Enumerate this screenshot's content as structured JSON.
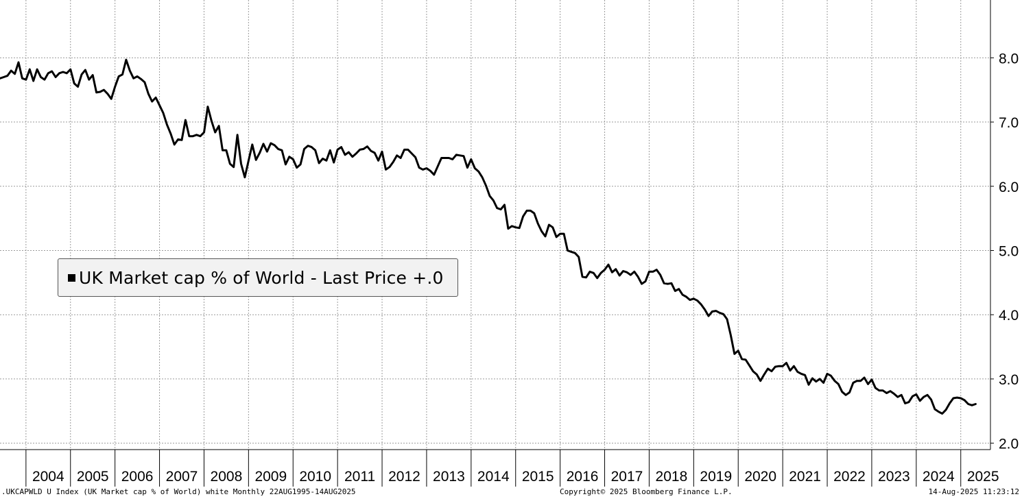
{
  "chart_data": {
    "type": "line",
    "title": "",
    "xlabel": "",
    "ylabel": "",
    "ylim": [
      1.9,
      8.9
    ],
    "xlim": [
      "2003-06",
      "2025-09"
    ],
    "grid": true,
    "y_axis_side": "right",
    "y_ticks": [
      "2.0",
      "3.0",
      "4.0",
      "5.0",
      "6.0",
      "7.0",
      "8.0"
    ],
    "x_ticks": [
      "2004",
      "2005",
      "2006",
      "2007",
      "2008",
      "2009",
      "2010",
      "2011",
      "2012",
      "2013",
      "2014",
      "2015",
      "2016",
      "2017",
      "2018",
      "2019",
      "2020",
      "2021",
      "2022",
      "2023",
      "2024",
      "2025"
    ],
    "legend": {
      "position": "middle-left",
      "label": "UK Market cap % of World - Last Price  +.0"
    },
    "series": [
      {
        "color": "#000000",
        "points": [
          [
            "2003-06",
            7.68
          ],
          [
            "2003-07",
            7.7
          ],
          [
            "2003-08",
            7.72
          ],
          [
            "2003-09",
            7.8
          ],
          [
            "2003-10",
            7.75
          ],
          [
            "2003-11",
            7.93
          ],
          [
            "2003-12",
            7.68
          ],
          [
            "2004-01",
            7.66
          ],
          [
            "2004-02",
            7.82
          ],
          [
            "2004-03",
            7.64
          ],
          [
            "2004-04",
            7.82
          ],
          [
            "2004-05",
            7.7
          ],
          [
            "2004-06",
            7.66
          ],
          [
            "2004-07",
            7.76
          ],
          [
            "2004-08",
            7.79
          ],
          [
            "2004-09",
            7.7
          ],
          [
            "2004-10",
            7.76
          ],
          [
            "2004-11",
            7.78
          ],
          [
            "2004-12",
            7.76
          ],
          [
            "2005-01",
            7.82
          ],
          [
            "2005-02",
            7.6
          ],
          [
            "2005-03",
            7.55
          ],
          [
            "2005-04",
            7.74
          ],
          [
            "2005-05",
            7.81
          ],
          [
            "2005-06",
            7.66
          ],
          [
            "2005-07",
            7.73
          ],
          [
            "2005-08",
            7.46
          ],
          [
            "2005-09",
            7.47
          ],
          [
            "2005-10",
            7.5
          ],
          [
            "2005-11",
            7.44
          ],
          [
            "2005-12",
            7.36
          ],
          [
            "2006-01",
            7.55
          ],
          [
            "2006-02",
            7.71
          ],
          [
            "2006-03",
            7.74
          ],
          [
            "2006-04",
            7.97
          ],
          [
            "2006-05",
            7.8
          ],
          [
            "2006-06",
            7.68
          ],
          [
            "2006-07",
            7.71
          ],
          [
            "2006-08",
            7.67
          ],
          [
            "2006-09",
            7.62
          ],
          [
            "2006-10",
            7.44
          ],
          [
            "2006-11",
            7.32
          ],
          [
            "2006-12",
            7.38
          ],
          [
            "2007-01",
            7.26
          ],
          [
            "2007-02",
            7.14
          ],
          [
            "2007-03",
            6.96
          ],
          [
            "2007-04",
            6.82
          ],
          [
            "2007-05",
            6.65
          ],
          [
            "2007-06",
            6.73
          ],
          [
            "2007-07",
            6.72
          ],
          [
            "2007-08",
            7.03
          ],
          [
            "2007-09",
            6.78
          ],
          [
            "2007-10",
            6.78
          ],
          [
            "2007-11",
            6.8
          ],
          [
            "2007-12",
            6.78
          ],
          [
            "2008-01",
            6.84
          ],
          [
            "2008-02",
            7.24
          ],
          [
            "2008-03",
            7.02
          ],
          [
            "2008-04",
            6.84
          ],
          [
            "2008-05",
            6.94
          ],
          [
            "2008-06",
            6.56
          ],
          [
            "2008-07",
            6.56
          ],
          [
            "2008-08",
            6.35
          ],
          [
            "2008-09",
            6.3
          ],
          [
            "2008-10",
            6.8
          ],
          [
            "2008-11",
            6.35
          ],
          [
            "2008-12",
            6.14
          ],
          [
            "2009-01",
            6.4
          ],
          [
            "2009-02",
            6.65
          ],
          [
            "2009-03",
            6.41
          ],
          [
            "2009-04",
            6.52
          ],
          [
            "2009-05",
            6.66
          ],
          [
            "2009-06",
            6.54
          ],
          [
            "2009-07",
            6.67
          ],
          [
            "2009-08",
            6.64
          ],
          [
            "2009-09",
            6.58
          ],
          [
            "2009-10",
            6.56
          ],
          [
            "2009-11",
            6.34
          ],
          [
            "2009-12",
            6.46
          ],
          [
            "2010-01",
            6.42
          ],
          [
            "2010-02",
            6.29
          ],
          [
            "2010-03",
            6.34
          ],
          [
            "2010-04",
            6.58
          ],
          [
            "2010-05",
            6.63
          ],
          [
            "2010-06",
            6.61
          ],
          [
            "2010-07",
            6.56
          ],
          [
            "2010-08",
            6.36
          ],
          [
            "2010-09",
            6.43
          ],
          [
            "2010-10",
            6.4
          ],
          [
            "2010-11",
            6.56
          ],
          [
            "2010-12",
            6.37
          ],
          [
            "2011-01",
            6.57
          ],
          [
            "2011-02",
            6.61
          ],
          [
            "2011-03",
            6.49
          ],
          [
            "2011-04",
            6.53
          ],
          [
            "2011-05",
            6.46
          ],
          [
            "2011-06",
            6.51
          ],
          [
            "2011-07",
            6.57
          ],
          [
            "2011-08",
            6.58
          ],
          [
            "2011-09",
            6.62
          ],
          [
            "2011-10",
            6.55
          ],
          [
            "2011-11",
            6.52
          ],
          [
            "2011-12",
            6.4
          ],
          [
            "2012-01",
            6.54
          ],
          [
            "2012-02",
            6.26
          ],
          [
            "2012-03",
            6.3
          ],
          [
            "2012-04",
            6.38
          ],
          [
            "2012-05",
            6.48
          ],
          [
            "2012-06",
            6.44
          ],
          [
            "2012-07",
            6.57
          ],
          [
            "2012-08",
            6.57
          ],
          [
            "2012-09",
            6.51
          ],
          [
            "2012-10",
            6.45
          ],
          [
            "2012-11",
            6.29
          ],
          [
            "2012-12",
            6.26
          ],
          [
            "2013-01",
            6.28
          ],
          [
            "2013-02",
            6.24
          ],
          [
            "2013-03",
            6.18
          ],
          [
            "2013-04",
            6.31
          ],
          [
            "2013-05",
            6.44
          ],
          [
            "2013-06",
            6.44
          ],
          [
            "2013-07",
            6.44
          ],
          [
            "2013-08",
            6.42
          ],
          [
            "2013-09",
            6.49
          ],
          [
            "2013-10",
            6.48
          ],
          [
            "2013-11",
            6.47
          ],
          [
            "2013-12",
            6.29
          ],
          [
            "2014-01",
            6.42
          ],
          [
            "2014-02",
            6.28
          ],
          [
            "2014-03",
            6.23
          ],
          [
            "2014-04",
            6.14
          ],
          [
            "2014-05",
            6.01
          ],
          [
            "2014-06",
            5.85
          ],
          [
            "2014-07",
            5.78
          ],
          [
            "2014-08",
            5.66
          ],
          [
            "2014-09",
            5.64
          ],
          [
            "2014-10",
            5.71
          ],
          [
            "2014-11",
            5.34
          ],
          [
            "2014-12",
            5.38
          ],
          [
            "2015-01",
            5.36
          ],
          [
            "2015-02",
            5.35
          ],
          [
            "2015-03",
            5.53
          ],
          [
            "2015-04",
            5.62
          ],
          [
            "2015-05",
            5.62
          ],
          [
            "2015-06",
            5.58
          ],
          [
            "2015-07",
            5.42
          ],
          [
            "2015-08",
            5.3
          ],
          [
            "2015-09",
            5.22
          ],
          [
            "2015-10",
            5.4
          ],
          [
            "2015-11",
            5.36
          ],
          [
            "2015-12",
            5.21
          ],
          [
            "2016-01",
            5.26
          ],
          [
            "2016-02",
            5.26
          ],
          [
            "2016-03",
            5.0
          ],
          [
            "2016-04",
            4.98
          ],
          [
            "2016-05",
            4.96
          ],
          [
            "2016-06",
            4.9
          ],
          [
            "2016-07",
            4.59
          ],
          [
            "2016-08",
            4.58
          ],
          [
            "2016-09",
            4.67
          ],
          [
            "2016-10",
            4.65
          ],
          [
            "2016-11",
            4.57
          ],
          [
            "2016-12",
            4.65
          ],
          [
            "2017-01",
            4.7
          ],
          [
            "2017-02",
            4.78
          ],
          [
            "2017-03",
            4.66
          ],
          [
            "2017-04",
            4.71
          ],
          [
            "2017-05",
            4.61
          ],
          [
            "2017-06",
            4.68
          ],
          [
            "2017-07",
            4.66
          ],
          [
            "2017-08",
            4.62
          ],
          [
            "2017-09",
            4.67
          ],
          [
            "2017-10",
            4.59
          ],
          [
            "2017-11",
            4.48
          ],
          [
            "2017-12",
            4.52
          ],
          [
            "2018-01",
            4.67
          ],
          [
            "2018-02",
            4.67
          ],
          [
            "2018-03",
            4.7
          ],
          [
            "2018-04",
            4.62
          ],
          [
            "2018-05",
            4.49
          ],
          [
            "2018-06",
            4.48
          ],
          [
            "2018-07",
            4.49
          ],
          [
            "2018-08",
            4.37
          ],
          [
            "2018-09",
            4.4
          ],
          [
            "2018-10",
            4.31
          ],
          [
            "2018-11",
            4.28
          ],
          [
            "2018-12",
            4.23
          ],
          [
            "2019-01",
            4.25
          ],
          [
            "2019-02",
            4.22
          ],
          [
            "2019-03",
            4.16
          ],
          [
            "2019-04",
            4.08
          ],
          [
            "2019-05",
            3.98
          ],
          [
            "2019-06",
            4.05
          ],
          [
            "2019-07",
            4.06
          ],
          [
            "2019-08",
            4.03
          ],
          [
            "2019-09",
            4.01
          ],
          [
            "2019-10",
            3.93
          ],
          [
            "2019-11",
            3.68
          ],
          [
            "2019-12",
            3.39
          ],
          [
            "2020-01",
            3.44
          ],
          [
            "2020-02",
            3.31
          ],
          [
            "2020-03",
            3.3
          ],
          [
            "2020-04",
            3.21
          ],
          [
            "2020-05",
            3.12
          ],
          [
            "2020-06",
            3.07
          ],
          [
            "2020-07",
            2.97
          ],
          [
            "2020-08",
            3.07
          ],
          [
            "2020-09",
            3.16
          ],
          [
            "2020-10",
            3.12
          ],
          [
            "2020-11",
            3.19
          ],
          [
            "2020-12",
            3.2
          ],
          [
            "2021-01",
            3.2
          ],
          [
            "2021-02",
            3.25
          ],
          [
            "2021-03",
            3.13
          ],
          [
            "2021-04",
            3.2
          ],
          [
            "2021-05",
            3.11
          ],
          [
            "2021-06",
            3.08
          ],
          [
            "2021-07",
            3.06
          ],
          [
            "2021-08",
            2.91
          ],
          [
            "2021-09",
            3.01
          ],
          [
            "2021-10",
            2.96
          ],
          [
            "2021-11",
            3.0
          ],
          [
            "2021-12",
            2.94
          ],
          [
            "2022-01",
            3.08
          ],
          [
            "2022-02",
            3.05
          ],
          [
            "2022-03",
            2.97
          ],
          [
            "2022-04",
            2.92
          ],
          [
            "2022-05",
            2.8
          ],
          [
            "2022-06",
            2.75
          ],
          [
            "2022-07",
            2.79
          ],
          [
            "2022-08",
            2.94
          ],
          [
            "2022-09",
            2.97
          ],
          [
            "2022-10",
            2.97
          ],
          [
            "2022-11",
            3.02
          ],
          [
            "2022-12",
            2.92
          ],
          [
            "2023-01",
            2.99
          ],
          [
            "2023-02",
            2.86
          ],
          [
            "2023-03",
            2.82
          ],
          [
            "2023-04",
            2.82
          ],
          [
            "2023-05",
            2.78
          ],
          [
            "2023-06",
            2.81
          ],
          [
            "2023-07",
            2.77
          ],
          [
            "2023-08",
            2.72
          ],
          [
            "2023-09",
            2.75
          ],
          [
            "2023-10",
            2.62
          ],
          [
            "2023-11",
            2.64
          ],
          [
            "2023-12",
            2.73
          ],
          [
            "2024-01",
            2.76
          ],
          [
            "2024-02",
            2.66
          ],
          [
            "2024-03",
            2.72
          ],
          [
            "2024-04",
            2.75
          ],
          [
            "2024-05",
            2.68
          ],
          [
            "2024-06",
            2.53
          ],
          [
            "2024-07",
            2.49
          ],
          [
            "2024-08",
            2.46
          ],
          [
            "2024-09",
            2.52
          ],
          [
            "2024-10",
            2.62
          ],
          [
            "2024-11",
            2.7
          ],
          [
            "2024-12",
            2.71
          ],
          [
            "2025-01",
            2.7
          ],
          [
            "2025-02",
            2.67
          ],
          [
            "2025-03",
            2.61
          ],
          [
            "2025-04",
            2.59
          ],
          [
            "2025-05",
            2.61
          ]
        ]
      }
    ]
  },
  "footer": {
    "left": ".UKCAPWLD U Index (UK Market cap % of World) white  Monthly 22AUG1995-14AUG2025",
    "center": "Copyright© 2025 Bloomberg Finance L.P.",
    "right": "14-Aug-2025 11:23:12"
  }
}
